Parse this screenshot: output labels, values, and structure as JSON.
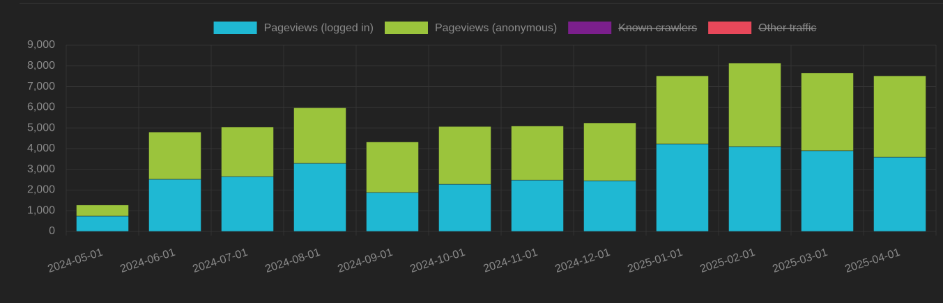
{
  "chart_data": {
    "type": "stacked_bar",
    "categories": [
      "2024-05-01",
      "2024-06-01",
      "2024-07-01",
      "2024-08-01",
      "2024-09-01",
      "2024-10-01",
      "2024-11-01",
      "2024-12-01",
      "2025-01-01",
      "2025-02-01",
      "2025-03-01",
      "2025-04-01"
    ],
    "series": [
      {
        "name": "Pageviews (logged in)",
        "color": "#1fb8d3",
        "values": [
          740,
          2520,
          2650,
          3290,
          1880,
          2280,
          2480,
          2450,
          4230,
          4100,
          3900,
          3590
        ]
      },
      {
        "name": "Pageviews (anonymous)",
        "color": "#9bc43c",
        "values": [
          540,
          2280,
          2390,
          2690,
          2450,
          2790,
          2620,
          2790,
          3290,
          4030,
          3760,
          3930
        ]
      },
      {
        "name": "Known crawlers",
        "color": "#7b1f8c",
        "hidden": true,
        "values": [
          null,
          null,
          null,
          null,
          null,
          null,
          null,
          null,
          null,
          null,
          null,
          null
        ]
      },
      {
        "name": "Other traffic",
        "color": "#e8485a",
        "hidden": true,
        "values": [
          null,
          null,
          null,
          null,
          null,
          null,
          null,
          null,
          null,
          null,
          null,
          null
        ]
      }
    ],
    "ylim": [
      0,
      9000
    ],
    "yticks": [
      0,
      {
        "value": 1000,
        "label": "1,000"
      },
      {
        "value": 2000,
        "label": "2,000"
      },
      {
        "value": 3000,
        "label": "3,000"
      },
      {
        "value": 4000,
        "label": "4,000"
      },
      {
        "value": 5000,
        "label": "5,000"
      },
      {
        "value": 6000,
        "label": "6,000"
      },
      {
        "value": 7000,
        "label": "7,000"
      },
      {
        "value": 8000,
        "label": "8,000"
      },
      {
        "value": 9000,
        "label": "9,000"
      }
    ],
    "grid": true,
    "legend": "top"
  }
}
